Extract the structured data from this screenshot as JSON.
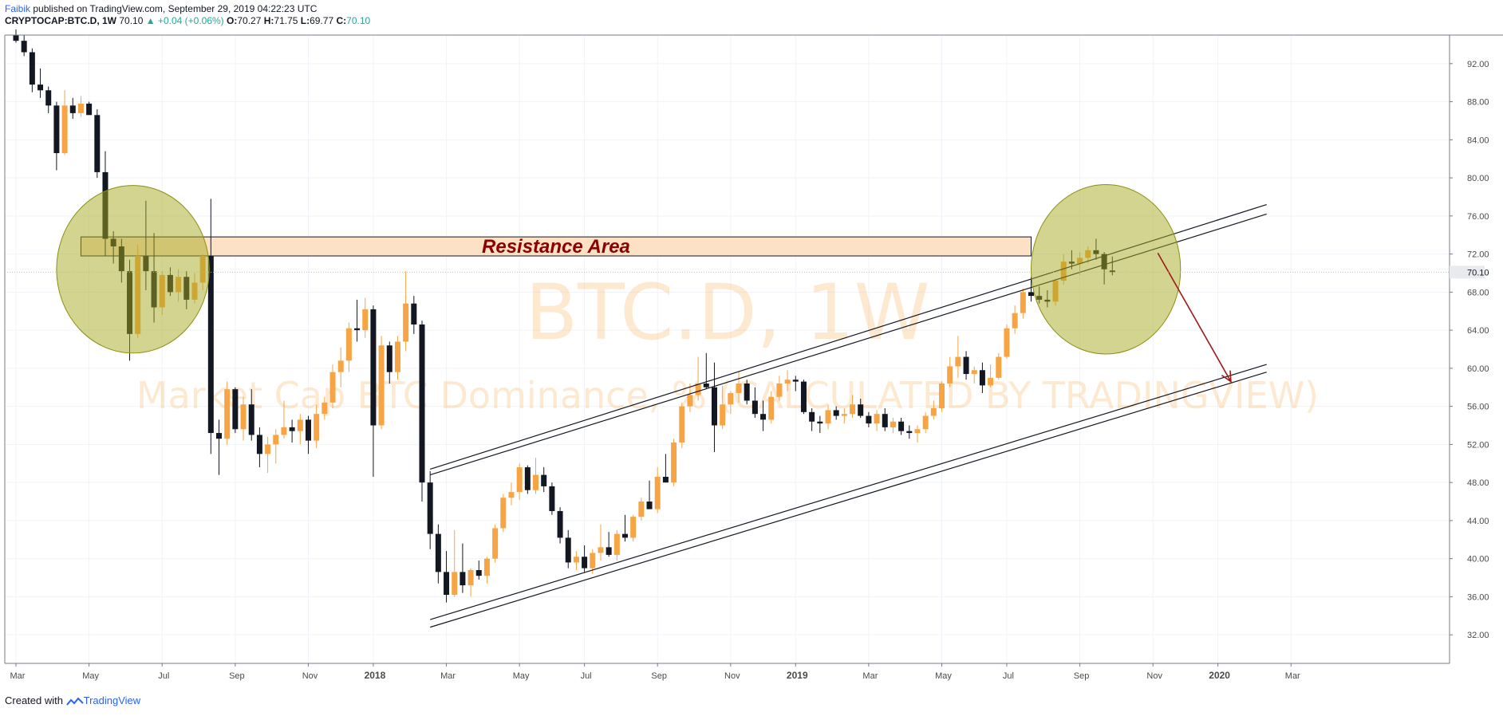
{
  "header": {
    "author": "Faibik",
    "published_text": "published on TradingView.com, September 29, 2019 04:22:23 UTC",
    "symbol": "CRYPTOCAP:BTC.D, 1W",
    "last": "70.10",
    "change": "▲ +0.04 (+0.06%)",
    "o_label": "O:",
    "o_value": "70.27",
    "h_label": "H:",
    "h_value": "71.75",
    "l_label": "L:",
    "l_value": "69.77",
    "c_label": "C:",
    "c_value": "70.10"
  },
  "watermark": {
    "symbol": "BTC.D, 1W",
    "description": "Market Cap BTC Dominance, % (CALCULATED BY TRADINGVIEW)"
  },
  "footer": {
    "created_with": "Created with",
    "brand": "TradingView"
  },
  "colors": {
    "up": "#f7a444",
    "down": "#131722",
    "resistance_fill": "#fce1c4",
    "resistance_text": "#8b0000",
    "circle_fill": "#a6a91f",
    "arrow": "#a01818",
    "watermark": "#f7a444",
    "grid": "#f0f3fa"
  },
  "chart_data": {
    "type": "candlestick",
    "title": "BTC.D, 1W",
    "ylim": [
      29,
      95
    ],
    "y_ticks": [
      32,
      36,
      40,
      44,
      48,
      52,
      56,
      60,
      64,
      68,
      72,
      76,
      80,
      84,
      88,
      92
    ],
    "x_ticks": [
      "Mar",
      "May",
      "Jul",
      "Sep",
      "Nov",
      "2018",
      "Mar",
      "May",
      "Jul",
      "Sep",
      "Nov",
      "2019",
      "Mar",
      "May",
      "Jul",
      "Sep",
      "Nov",
      "2020",
      "Mar"
    ],
    "x_tick_weeks": [
      0,
      9,
      18,
      27,
      36,
      44,
      53,
      62,
      70,
      79,
      88,
      96,
      105,
      114,
      122,
      131,
      140,
      148,
      157
    ],
    "last_price": "70.10",
    "candles": [
      {
        "o": 95.0,
        "h": 95.6,
        "l": 94.2,
        "c": 94.4
      },
      {
        "o": 94.4,
        "h": 95.0,
        "l": 92.8,
        "c": 93.2
      },
      {
        "o": 93.2,
        "h": 93.6,
        "l": 89.0,
        "c": 89.8
      },
      {
        "o": 89.8,
        "h": 91.5,
        "l": 88.4,
        "c": 89.2
      },
      {
        "o": 89.2,
        "h": 89.6,
        "l": 86.8,
        "c": 87.6
      },
      {
        "o": 87.6,
        "h": 88.0,
        "l": 80.8,
        "c": 82.6
      },
      {
        "o": 82.6,
        "h": 89.2,
        "l": 82.4,
        "c": 87.6
      },
      {
        "o": 87.6,
        "h": 88.4,
        "l": 86.2,
        "c": 86.8
      },
      {
        "o": 86.8,
        "h": 88.6,
        "l": 86.4,
        "c": 87.8
      },
      {
        "o": 87.8,
        "h": 88.0,
        "l": 86.8,
        "c": 86.6
      },
      {
        "o": 86.6,
        "h": 87.2,
        "l": 80.0,
        "c": 80.6
      },
      {
        "o": 80.6,
        "h": 82.8,
        "l": 71.8,
        "c": 73.6
      },
      {
        "o": 73.6,
        "h": 74.4,
        "l": 71.0,
        "c": 72.8
      },
      {
        "o": 72.8,
        "h": 73.6,
        "l": 69.0,
        "c": 70.2
      },
      {
        "o": 70.2,
        "h": 71.4,
        "l": 60.8,
        "c": 63.6
      },
      {
        "o": 63.6,
        "h": 73.0,
        "l": 63.2,
        "c": 71.8
      },
      {
        "o": 71.8,
        "h": 77.6,
        "l": 68.2,
        "c": 70.2
      },
      {
        "o": 70.2,
        "h": 74.2,
        "l": 64.8,
        "c": 66.4
      },
      {
        "o": 66.4,
        "h": 70.2,
        "l": 65.6,
        "c": 69.8
      },
      {
        "o": 69.8,
        "h": 70.6,
        "l": 67.6,
        "c": 68.0
      },
      {
        "o": 68.0,
        "h": 70.4,
        "l": 67.0,
        "c": 69.6
      },
      {
        "o": 69.6,
        "h": 70.2,
        "l": 66.2,
        "c": 67.2
      },
      {
        "o": 67.2,
        "h": 70.0,
        "l": 66.8,
        "c": 69.0
      },
      {
        "o": 69.0,
        "h": 72.0,
        "l": 68.2,
        "c": 71.8
      },
      {
        "o": 71.8,
        "h": 77.8,
        "l": 51.0,
        "c": 53.2
      },
      {
        "o": 53.2,
        "h": 54.6,
        "l": 48.8,
        "c": 52.6
      },
      {
        "o": 52.6,
        "h": 58.6,
        "l": 52.0,
        "c": 57.8
      },
      {
        "o": 57.8,
        "h": 58.0,
        "l": 53.2,
        "c": 53.6
      },
      {
        "o": 53.6,
        "h": 57.0,
        "l": 52.4,
        "c": 56.2
      },
      {
        "o": 56.2,
        "h": 57.8,
        "l": 52.4,
        "c": 53.0
      },
      {
        "o": 53.0,
        "h": 53.8,
        "l": 49.6,
        "c": 51.0
      },
      {
        "o": 51.0,
        "h": 52.8,
        "l": 49.0,
        "c": 52.0
      },
      {
        "o": 52.0,
        "h": 53.6,
        "l": 50.0,
        "c": 53.0
      },
      {
        "o": 53.0,
        "h": 56.6,
        "l": 52.6,
        "c": 53.8
      },
      {
        "o": 53.8,
        "h": 54.6,
        "l": 52.2,
        "c": 53.4
      },
      {
        "o": 53.4,
        "h": 55.2,
        "l": 52.0,
        "c": 54.6
      },
      {
        "o": 54.6,
        "h": 55.0,
        "l": 51.0,
        "c": 52.4
      },
      {
        "o": 52.4,
        "h": 56.2,
        "l": 51.6,
        "c": 55.2
      },
      {
        "o": 55.2,
        "h": 57.0,
        "l": 54.6,
        "c": 56.4
      },
      {
        "o": 56.4,
        "h": 60.4,
        "l": 55.8,
        "c": 59.6
      },
      {
        "o": 59.6,
        "h": 62.2,
        "l": 58.0,
        "c": 60.8
      },
      {
        "o": 60.8,
        "h": 64.8,
        "l": 59.6,
        "c": 64.2
      },
      {
        "o": 64.2,
        "h": 67.2,
        "l": 62.8,
        "c": 64.0
      },
      {
        "o": 64.0,
        "h": 67.4,
        "l": 63.2,
        "c": 66.2
      },
      {
        "o": 66.2,
        "h": 66.6,
        "l": 48.6,
        "c": 54.0
      },
      {
        "o": 54.0,
        "h": 63.4,
        "l": 53.6,
        "c": 62.4
      },
      {
        "o": 62.4,
        "h": 62.8,
        "l": 58.4,
        "c": 59.6
      },
      {
        "o": 59.6,
        "h": 63.4,
        "l": 58.8,
        "c": 62.8
      },
      {
        "o": 62.8,
        "h": 70.2,
        "l": 61.8,
        "c": 66.8
      },
      {
        "o": 66.8,
        "h": 67.6,
        "l": 63.6,
        "c": 64.6
      },
      {
        "o": 64.6,
        "h": 65.0,
        "l": 46.0,
        "c": 48.0
      },
      {
        "o": 48.0,
        "h": 49.2,
        "l": 41.0,
        "c": 42.6
      },
      {
        "o": 42.6,
        "h": 43.6,
        "l": 37.4,
        "c": 38.6
      },
      {
        "o": 38.6,
        "h": 40.8,
        "l": 35.4,
        "c": 36.2
      },
      {
        "o": 36.2,
        "h": 43.0,
        "l": 36.0,
        "c": 38.6
      },
      {
        "o": 38.6,
        "h": 41.6,
        "l": 36.4,
        "c": 37.2
      },
      {
        "o": 37.2,
        "h": 39.0,
        "l": 36.0,
        "c": 38.8
      },
      {
        "o": 38.8,
        "h": 39.8,
        "l": 37.8,
        "c": 38.2
      },
      {
        "o": 38.2,
        "h": 40.2,
        "l": 37.4,
        "c": 40.0
      },
      {
        "o": 40.0,
        "h": 43.6,
        "l": 39.6,
        "c": 43.2
      },
      {
        "o": 43.2,
        "h": 46.8,
        "l": 42.8,
        "c": 46.4
      },
      {
        "o": 46.4,
        "h": 48.0,
        "l": 45.6,
        "c": 47.0
      },
      {
        "o": 47.0,
        "h": 50.0,
        "l": 46.2,
        "c": 49.6
      },
      {
        "o": 49.6,
        "h": 49.8,
        "l": 46.8,
        "c": 47.2
      },
      {
        "o": 47.2,
        "h": 50.6,
        "l": 46.8,
        "c": 48.8
      },
      {
        "o": 48.8,
        "h": 49.6,
        "l": 47.0,
        "c": 47.6
      },
      {
        "o": 47.6,
        "h": 48.0,
        "l": 44.6,
        "c": 45.0
      },
      {
        "o": 45.0,
        "h": 45.4,
        "l": 41.6,
        "c": 42.2
      },
      {
        "o": 42.2,
        "h": 43.0,
        "l": 39.0,
        "c": 39.6
      },
      {
        "o": 39.6,
        "h": 40.8,
        "l": 38.8,
        "c": 40.2
      },
      {
        "o": 40.2,
        "h": 41.4,
        "l": 38.6,
        "c": 39.0
      },
      {
        "o": 39.0,
        "h": 41.0,
        "l": 38.4,
        "c": 40.6
      },
      {
        "o": 40.6,
        "h": 43.6,
        "l": 39.8,
        "c": 41.2
      },
      {
        "o": 41.2,
        "h": 42.8,
        "l": 40.2,
        "c": 40.4
      },
      {
        "o": 40.4,
        "h": 43.0,
        "l": 39.8,
        "c": 42.6
      },
      {
        "o": 42.6,
        "h": 44.6,
        "l": 41.8,
        "c": 42.2
      },
      {
        "o": 42.2,
        "h": 44.6,
        "l": 41.8,
        "c": 44.4
      },
      {
        "o": 44.4,
        "h": 46.4,
        "l": 44.0,
        "c": 46.0
      },
      {
        "o": 46.0,
        "h": 48.2,
        "l": 45.6,
        "c": 45.2
      },
      {
        "o": 45.2,
        "h": 49.6,
        "l": 44.8,
        "c": 48.6
      },
      {
        "o": 48.6,
        "h": 51.0,
        "l": 48.0,
        "c": 48.0
      },
      {
        "o": 48.0,
        "h": 52.6,
        "l": 47.6,
        "c": 52.2
      },
      {
        "o": 52.2,
        "h": 56.4,
        "l": 51.6,
        "c": 56.0
      },
      {
        "o": 56.0,
        "h": 58.4,
        "l": 55.4,
        "c": 57.2
      },
      {
        "o": 57.2,
        "h": 61.2,
        "l": 56.6,
        "c": 58.4
      },
      {
        "o": 58.4,
        "h": 61.6,
        "l": 57.8,
        "c": 58.0
      },
      {
        "o": 58.0,
        "h": 60.6,
        "l": 51.2,
        "c": 54.0
      },
      {
        "o": 54.0,
        "h": 58.2,
        "l": 53.6,
        "c": 56.2
      },
      {
        "o": 56.2,
        "h": 57.6,
        "l": 55.2,
        "c": 57.4
      },
      {
        "o": 57.4,
        "h": 59.6,
        "l": 56.4,
        "c": 58.4
      },
      {
        "o": 58.4,
        "h": 58.8,
        "l": 56.2,
        "c": 56.6
      },
      {
        "o": 56.6,
        "h": 58.0,
        "l": 54.8,
        "c": 55.2
      },
      {
        "o": 55.2,
        "h": 56.6,
        "l": 53.4,
        "c": 54.6
      },
      {
        "o": 54.6,
        "h": 57.6,
        "l": 54.2,
        "c": 57.0
      },
      {
        "o": 57.0,
        "h": 59.2,
        "l": 56.6,
        "c": 58.4
      },
      {
        "o": 58.4,
        "h": 59.8,
        "l": 57.6,
        "c": 58.8
      },
      {
        "o": 58.8,
        "h": 59.2,
        "l": 57.6,
        "c": 58.6
      },
      {
        "o": 58.6,
        "h": 58.8,
        "l": 55.2,
        "c": 55.4
      },
      {
        "o": 55.4,
        "h": 55.8,
        "l": 53.4,
        "c": 54.4
      },
      {
        "o": 54.4,
        "h": 55.0,
        "l": 53.2,
        "c": 54.2
      },
      {
        "o": 54.2,
        "h": 56.2,
        "l": 53.6,
        "c": 55.6
      },
      {
        "o": 55.6,
        "h": 56.0,
        "l": 54.6,
        "c": 55.0
      },
      {
        "o": 55.0,
        "h": 55.8,
        "l": 54.2,
        "c": 55.2
      },
      {
        "o": 55.2,
        "h": 57.2,
        "l": 54.8,
        "c": 56.2
      },
      {
        "o": 56.2,
        "h": 56.8,
        "l": 54.8,
        "c": 55.0
      },
      {
        "o": 55.0,
        "h": 55.4,
        "l": 53.8,
        "c": 54.2
      },
      {
        "o": 54.2,
        "h": 55.6,
        "l": 53.4,
        "c": 55.2
      },
      {
        "o": 55.2,
        "h": 55.8,
        "l": 53.4,
        "c": 53.8
      },
      {
        "o": 53.8,
        "h": 54.8,
        "l": 53.2,
        "c": 54.4
      },
      {
        "o": 54.4,
        "h": 54.8,
        "l": 53.0,
        "c": 53.4
      },
      {
        "o": 53.4,
        "h": 54.0,
        "l": 52.6,
        "c": 53.2
      },
      {
        "o": 53.2,
        "h": 54.0,
        "l": 52.2,
        "c": 53.6
      },
      {
        "o": 53.6,
        "h": 55.4,
        "l": 53.2,
        "c": 55.0
      },
      {
        "o": 55.0,
        "h": 56.6,
        "l": 54.6,
        "c": 55.8
      },
      {
        "o": 55.8,
        "h": 58.6,
        "l": 55.4,
        "c": 58.4
      },
      {
        "o": 58.4,
        "h": 61.2,
        "l": 58.0,
        "c": 60.2
      },
      {
        "o": 60.2,
        "h": 63.4,
        "l": 59.0,
        "c": 61.2
      },
      {
        "o": 61.2,
        "h": 61.8,
        "l": 58.8,
        "c": 59.4
      },
      {
        "o": 59.4,
        "h": 60.2,
        "l": 58.4,
        "c": 59.8
      },
      {
        "o": 59.8,
        "h": 60.6,
        "l": 57.4,
        "c": 58.2
      },
      {
        "o": 58.2,
        "h": 60.4,
        "l": 58.0,
        "c": 59.0
      },
      {
        "o": 59.0,
        "h": 61.6,
        "l": 58.8,
        "c": 61.2
      },
      {
        "o": 61.2,
        "h": 64.6,
        "l": 61.0,
        "c": 64.2
      },
      {
        "o": 64.2,
        "h": 66.6,
        "l": 63.6,
        "c": 65.8
      },
      {
        "o": 65.8,
        "h": 68.4,
        "l": 65.2,
        "c": 68.0
      },
      {
        "o": 68.0,
        "h": 69.6,
        "l": 67.0,
        "c": 67.6
      },
      {
        "o": 67.6,
        "h": 68.6,
        "l": 66.8,
        "c": 67.2
      },
      {
        "o": 67.2,
        "h": 68.2,
        "l": 66.4,
        "c": 67.0
      },
      {
        "o": 67.0,
        "h": 69.4,
        "l": 66.6,
        "c": 69.2
      },
      {
        "o": 69.2,
        "h": 72.0,
        "l": 68.8,
        "c": 71.2
      },
      {
        "o": 71.2,
        "h": 72.4,
        "l": 70.4,
        "c": 71.0
      },
      {
        "o": 71.0,
        "h": 72.2,
        "l": 69.8,
        "c": 71.6
      },
      {
        "o": 71.6,
        "h": 72.8,
        "l": 71.0,
        "c": 72.4
      },
      {
        "o": 72.4,
        "h": 73.6,
        "l": 71.4,
        "c": 72.0
      },
      {
        "o": 72.0,
        "h": 72.2,
        "l": 68.8,
        "c": 70.4
      },
      {
        "o": 70.27,
        "h": 71.75,
        "l": 69.77,
        "c": 70.1
      }
    ]
  }
}
